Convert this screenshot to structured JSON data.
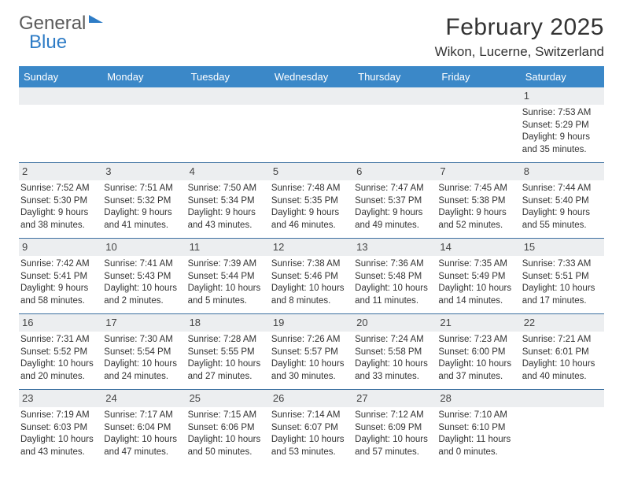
{
  "brand": {
    "part1": "General",
    "part2": "Blue"
  },
  "title": "February 2025",
  "location": "Wikon, Lucerne, Switzerland",
  "colors": {
    "header_bg": "#3b88c8",
    "daynum_bg": "#eceef0",
    "rule": "#3b6fa0",
    "text": "#333333"
  },
  "dows": [
    "Sunday",
    "Monday",
    "Tuesday",
    "Wednesday",
    "Thursday",
    "Friday",
    "Saturday"
  ],
  "weeks": [
    [
      {
        "day": null
      },
      {
        "day": null
      },
      {
        "day": null
      },
      {
        "day": null
      },
      {
        "day": null
      },
      {
        "day": null
      },
      {
        "day": 1,
        "sunrise": "7:53 AM",
        "sunset": "5:29 PM",
        "daylight": "9 hours and 35 minutes."
      }
    ],
    [
      {
        "day": 2,
        "sunrise": "7:52 AM",
        "sunset": "5:30 PM",
        "daylight": "9 hours and 38 minutes."
      },
      {
        "day": 3,
        "sunrise": "7:51 AM",
        "sunset": "5:32 PM",
        "daylight": "9 hours and 41 minutes."
      },
      {
        "day": 4,
        "sunrise": "7:50 AM",
        "sunset": "5:34 PM",
        "daylight": "9 hours and 43 minutes."
      },
      {
        "day": 5,
        "sunrise": "7:48 AM",
        "sunset": "5:35 PM",
        "daylight": "9 hours and 46 minutes."
      },
      {
        "day": 6,
        "sunrise": "7:47 AM",
        "sunset": "5:37 PM",
        "daylight": "9 hours and 49 minutes."
      },
      {
        "day": 7,
        "sunrise": "7:45 AM",
        "sunset": "5:38 PM",
        "daylight": "9 hours and 52 minutes."
      },
      {
        "day": 8,
        "sunrise": "7:44 AM",
        "sunset": "5:40 PM",
        "daylight": "9 hours and 55 minutes."
      }
    ],
    [
      {
        "day": 9,
        "sunrise": "7:42 AM",
        "sunset": "5:41 PM",
        "daylight": "9 hours and 58 minutes."
      },
      {
        "day": 10,
        "sunrise": "7:41 AM",
        "sunset": "5:43 PM",
        "daylight": "10 hours and 2 minutes."
      },
      {
        "day": 11,
        "sunrise": "7:39 AM",
        "sunset": "5:44 PM",
        "daylight": "10 hours and 5 minutes."
      },
      {
        "day": 12,
        "sunrise": "7:38 AM",
        "sunset": "5:46 PM",
        "daylight": "10 hours and 8 minutes."
      },
      {
        "day": 13,
        "sunrise": "7:36 AM",
        "sunset": "5:48 PM",
        "daylight": "10 hours and 11 minutes."
      },
      {
        "day": 14,
        "sunrise": "7:35 AM",
        "sunset": "5:49 PM",
        "daylight": "10 hours and 14 minutes."
      },
      {
        "day": 15,
        "sunrise": "7:33 AM",
        "sunset": "5:51 PM",
        "daylight": "10 hours and 17 minutes."
      }
    ],
    [
      {
        "day": 16,
        "sunrise": "7:31 AM",
        "sunset": "5:52 PM",
        "daylight": "10 hours and 20 minutes."
      },
      {
        "day": 17,
        "sunrise": "7:30 AM",
        "sunset": "5:54 PM",
        "daylight": "10 hours and 24 minutes."
      },
      {
        "day": 18,
        "sunrise": "7:28 AM",
        "sunset": "5:55 PM",
        "daylight": "10 hours and 27 minutes."
      },
      {
        "day": 19,
        "sunrise": "7:26 AM",
        "sunset": "5:57 PM",
        "daylight": "10 hours and 30 minutes."
      },
      {
        "day": 20,
        "sunrise": "7:24 AM",
        "sunset": "5:58 PM",
        "daylight": "10 hours and 33 minutes."
      },
      {
        "day": 21,
        "sunrise": "7:23 AM",
        "sunset": "6:00 PM",
        "daylight": "10 hours and 37 minutes."
      },
      {
        "day": 22,
        "sunrise": "7:21 AM",
        "sunset": "6:01 PM",
        "daylight": "10 hours and 40 minutes."
      }
    ],
    [
      {
        "day": 23,
        "sunrise": "7:19 AM",
        "sunset": "6:03 PM",
        "daylight": "10 hours and 43 minutes."
      },
      {
        "day": 24,
        "sunrise": "7:17 AM",
        "sunset": "6:04 PM",
        "daylight": "10 hours and 47 minutes."
      },
      {
        "day": 25,
        "sunrise": "7:15 AM",
        "sunset": "6:06 PM",
        "daylight": "10 hours and 50 minutes."
      },
      {
        "day": 26,
        "sunrise": "7:14 AM",
        "sunset": "6:07 PM",
        "daylight": "10 hours and 53 minutes."
      },
      {
        "day": 27,
        "sunrise": "7:12 AM",
        "sunset": "6:09 PM",
        "daylight": "10 hours and 57 minutes."
      },
      {
        "day": 28,
        "sunrise": "7:10 AM",
        "sunset": "6:10 PM",
        "daylight": "11 hours and 0 minutes."
      },
      {
        "day": null
      }
    ]
  ],
  "labels": {
    "sunrise": "Sunrise:",
    "sunset": "Sunset:",
    "daylight": "Daylight:"
  }
}
